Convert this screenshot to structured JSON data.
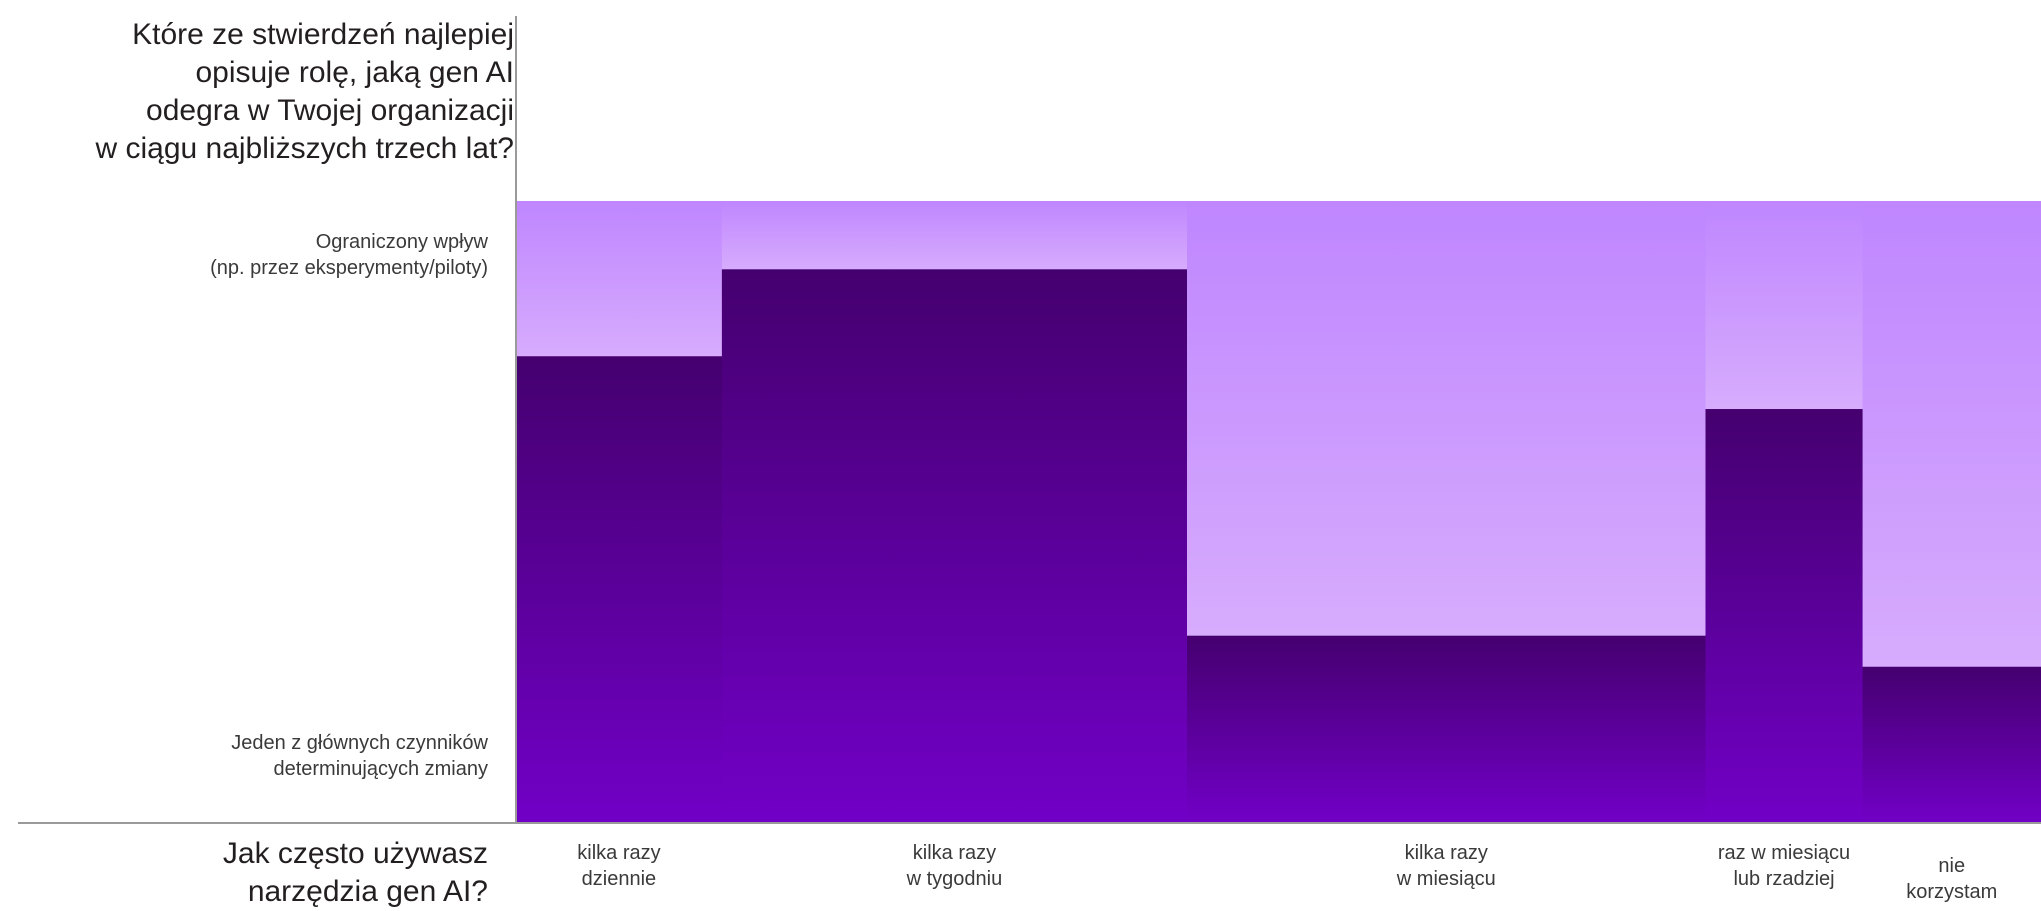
{
  "chart_data": {
    "type": "bar",
    "title": "",
    "ylabel": "Które ze stwierdzeń najlepiej\nopisuje rolę, jaką gen AI\nodegra w Twojej organizacji\nw ciągu najbliższych trzech lat?",
    "xlabel": "Jak często używasz\nnarzędzia gen AI?",
    "y_categories": [
      "Ograniczony wpływ\n(np. przez eksperymenty/piloty)",
      "Jeden z głównych czynników\ndeterminujących zmiany"
    ],
    "categories": [
      "kilka razy\ndziennie",
      "kilka razy\nw tygodniu",
      "kilka razy\nw miesiącu",
      "raz w miesiącu\nlub rzadziej",
      "nie korzystam"
    ],
    "widths": [
      0.135,
      0.305,
      0.34,
      0.103,
      0.117
    ],
    "series": [
      {
        "values": [
          0.75,
          0.89,
          0.3,
          0.665,
          0.25
        ]
      },
      {
        "values": [
          0.25,
          0.11,
          0.7,
          0.335,
          0.75
        ]
      }
    ],
    "colors": {
      "major_top": "#45006f",
      "major_bottom": "#7100c6",
      "limited_top": "#bf86fe",
      "limited_bottom": "#d7acfd",
      "axis": "#9a9a9a"
    }
  }
}
